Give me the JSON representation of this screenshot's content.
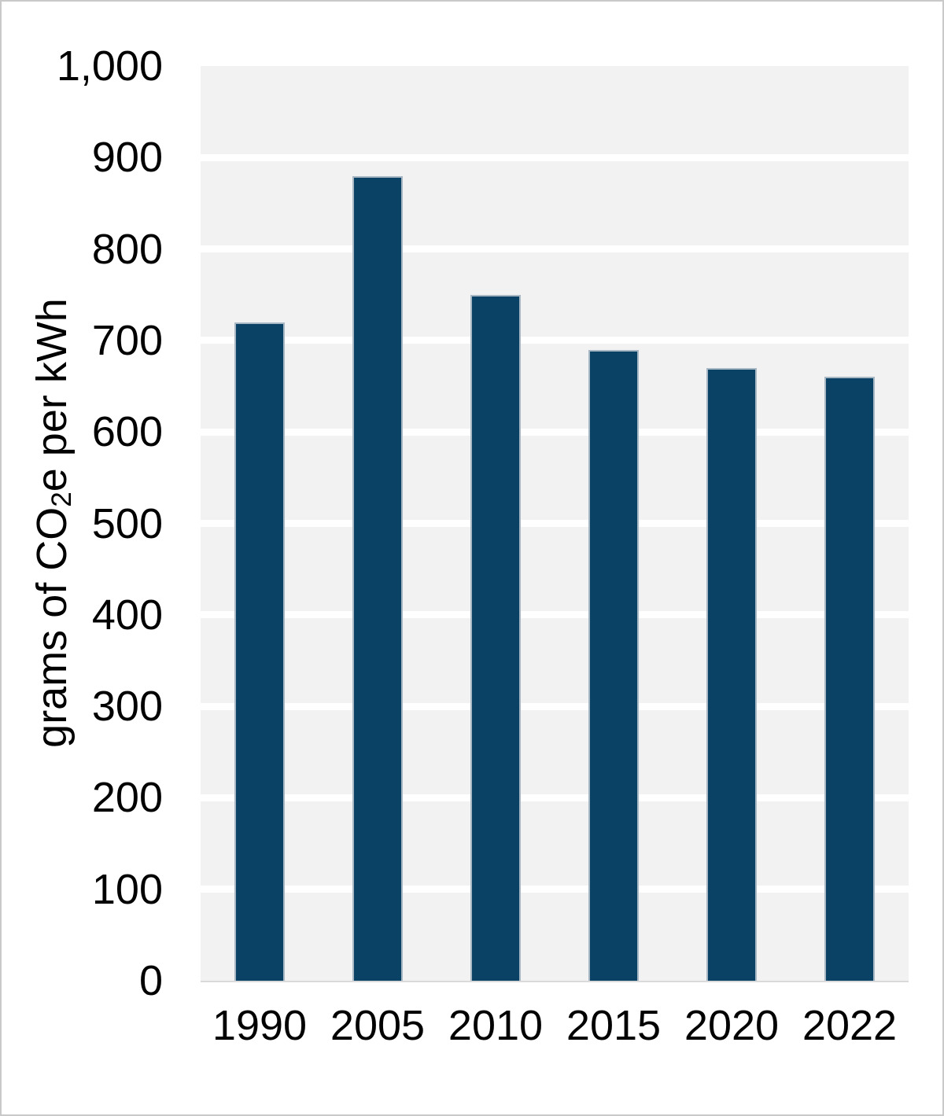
{
  "chart_data": {
    "type": "bar",
    "title": "",
    "categories": [
      "1990",
      "2005",
      "2010",
      "2015",
      "2020",
      "2022"
    ],
    "values": [
      720,
      880,
      750,
      690,
      670,
      660
    ],
    "xlabel": "",
    "ylabel": "grams of CO₂e per kWh",
    "ylabel_parts": {
      "pre": "grams of CO",
      "sub": "2",
      "post": "e per kWh"
    },
    "ylim": [
      0,
      1000
    ],
    "y_tick_step": 100,
    "y_tick_labels": [
      "0",
      "100",
      "200",
      "300",
      "400",
      "500",
      "600",
      "700",
      "800",
      "900",
      "1,000"
    ],
    "grid": "horizontal white major gridlines on light gray plot background",
    "legend_position": "none",
    "colors": {
      "bar_fill": "#0a4266",
      "bar_border": "#a7b8c4",
      "plot_background": "#f2f2f2",
      "gridline": "#ffffff",
      "axis_line": "#dadada",
      "text": "#000000",
      "frame_border": "#c9c9c9",
      "page_background": "#ffffff"
    }
  }
}
